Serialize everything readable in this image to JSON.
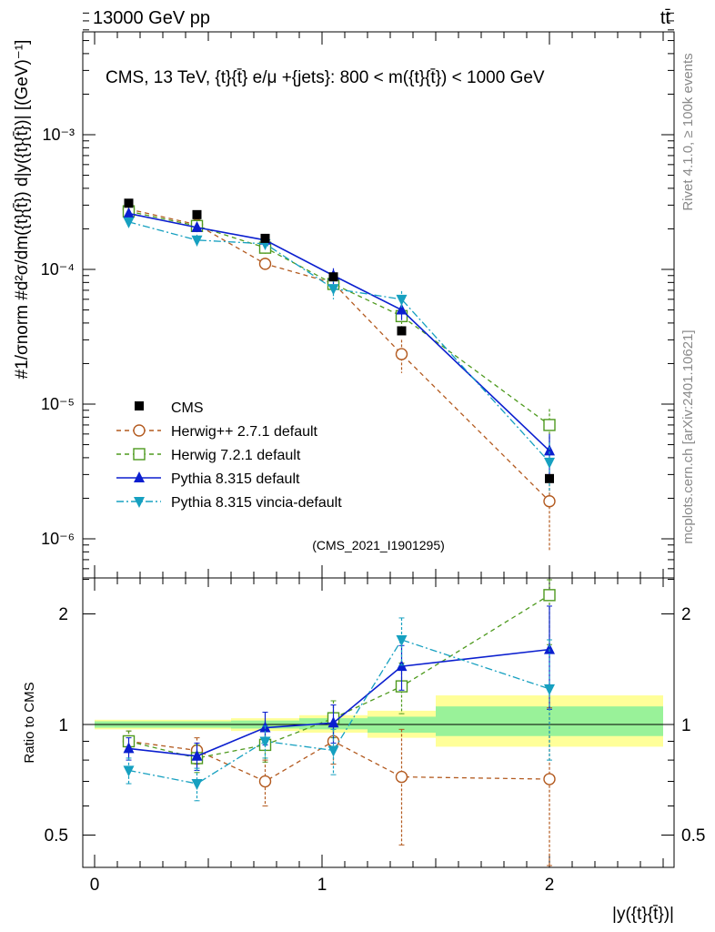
{
  "header": {
    "left": "13000 GeV pp",
    "right": "tt̄",
    "title": "CMS, 13 TeV, {t}{t̄} e/μ +{jets}: 800 < m({t}{t̄}) < 1000 GeV",
    "side_label": "Rivet 4.1.0, ≥ 100k events",
    "side_label2": "mcplots.cern.ch [arXiv:2401.10621]",
    "watermark": "(CMS_2021_I1901295)"
  },
  "chart_data": [
    {
      "type": "scatter",
      "title": "CMS, 13 TeV, {t}{t̄} e/μ +{jets}: 800 < m({t}{t̄}) < 1000 GeV",
      "ylabel": "#1/σnorm #d²σ/dm({t}{t̄}) d|y({t}{t̄})| [(GeV)⁻¹]",
      "yscale": "log",
      "ylim": [
        5e-07,
        0.008
      ],
      "xlim": [
        -0.1,
        2.55
      ],
      "y_tick_labels": [
        "10⁻³",
        "10⁻⁴",
        "10⁻⁵",
        "10⁻⁶"
      ],
      "data": {
        "name": "CMS",
        "x": [
          0.15,
          0.45,
          0.75,
          1.05,
          1.35,
          2.0
        ],
        "y": [
          0.00031,
          0.000255,
          0.00017,
          8.8e-05,
          3.5e-05,
          2.8e-06
        ],
        "color": "#000000"
      },
      "series": [
        {
          "name": "Herwig++ 2.7.1 default",
          "color": "#b35a1f",
          "marker": "circle-open",
          "dash": "dashed",
          "x": [
            0.15,
            0.45,
            0.75,
            1.05,
            1.35,
            2.0
          ],
          "y": [
            0.00028,
            0.000215,
            0.00011,
            7.9e-05,
            2.35e-05,
            1.9e-06
          ],
          "err": [
            2e-05,
            1.8e-05,
            1.2e-05,
            1e-05,
            6.5e-06,
            1.1e-06
          ]
        },
        {
          "name": "Herwig 7.2.1 default",
          "color": "#4e9a1e",
          "marker": "square-open",
          "dash": "dashed",
          "x": [
            0.15,
            0.45,
            0.75,
            1.05,
            1.35,
            2.0
          ],
          "y": [
            0.00027,
            0.00021,
            0.000145,
            7.8e-05,
            4.5e-05,
            7e-06
          ],
          "err": [
            2e-05,
            1.8e-05,
            1.5e-05,
            1.2e-05,
            7e-06,
            2.2e-06
          ]
        },
        {
          "name": "Pythia 8.315 default",
          "color": "#0b1fcf",
          "marker": "triangle-up",
          "dash": "solid",
          "x": [
            0.15,
            0.45,
            0.75,
            1.05,
            1.35,
            2.0
          ],
          "y": [
            0.00026,
            0.000205,
            0.000165,
            9e-05,
            5e-05,
            4.5e-06
          ],
          "err": [
            1.8e-05,
            1.6e-05,
            1.5e-05,
            1.2e-05,
            8e-06,
            1.5e-06
          ]
        },
        {
          "name": "Pythia 8.315 vincia-default",
          "color": "#16a0c0",
          "marker": "triangle-down",
          "dash": "dashdot",
          "x": [
            0.15,
            0.45,
            0.75,
            1.05,
            1.35,
            2.0
          ],
          "y": [
            0.000225,
            0.000165,
            0.000155,
            7.2e-05,
            6e-05,
            3.7e-06
          ],
          "err": [
            1.8e-05,
            1.6e-05,
            1.5e-05,
            1.2e-05,
            9e-06,
            1.5e-06
          ]
        }
      ],
      "legend_position": "bottom-left"
    },
    {
      "type": "scatter",
      "ylabel": "Ratio to CMS",
      "xlabel": "|y({t}{t̄})|",
      "ylim": [
        0.38,
        2.3
      ],
      "xlim": [
        -0.1,
        2.55
      ],
      "x_ticks": [
        0,
        1,
        2
      ],
      "x_tick_labels": [
        "0",
        "1",
        "2"
      ],
      "y_ticks": [
        0.5,
        1,
        2
      ],
      "y_tick_labels": [
        "0.5",
        "1",
        "2"
      ],
      "bands": [
        {
          "x0": 0.0,
          "x1": 0.6,
          "yellow": [
            0.97,
            1.03
          ],
          "green": [
            0.98,
            1.02
          ]
        },
        {
          "x0": 0.6,
          "x1": 0.9,
          "yellow": [
            0.96,
            1.04
          ],
          "green": [
            0.975,
            1.025
          ]
        },
        {
          "x0": 0.9,
          "x1": 1.2,
          "yellow": [
            0.95,
            1.06
          ],
          "green": [
            0.97,
            1.04
          ]
        },
        {
          "x0": 1.2,
          "x1": 1.5,
          "yellow": [
            0.92,
            1.09
          ],
          "green": [
            0.95,
            1.05
          ]
        },
        {
          "x0": 1.5,
          "x1": 2.5,
          "yellow": [
            0.87,
            1.2
          ],
          "green": [
            0.93,
            1.12
          ]
        }
      ],
      "series": [
        {
          "name": "Herwig++ 2.7.1 default",
          "color": "#b35a1f",
          "marker": "circle-open",
          "dash": "dashed",
          "x": [
            0.15,
            0.45,
            0.75,
            1.05,
            1.35,
            2.0
          ],
          "y": [
            0.9,
            0.85,
            0.7,
            0.9,
            0.72,
            0.71
          ],
          "err": [
            0.06,
            0.07,
            0.1,
            0.12,
            0.25,
            0.4
          ]
        },
        {
          "name": "Herwig 7.2.1 default",
          "color": "#4e9a1e",
          "marker": "square-open",
          "dash": "dashed",
          "x": [
            0.15,
            0.45,
            0.75,
            1.05,
            1.35,
            2.0
          ],
          "y": [
            0.9,
            0.81,
            0.88,
            1.04,
            1.27,
            2.25
          ],
          "err": [
            0.06,
            0.07,
            0.09,
            0.12,
            0.2,
            0.6
          ]
        },
        {
          "name": "Pythia 8.315 default",
          "color": "#0b1fcf",
          "marker": "triangle-up",
          "dash": "solid",
          "x": [
            0.15,
            0.45,
            0.75,
            1.05,
            1.35,
            2.0
          ],
          "y": [
            0.86,
            0.82,
            0.98,
            1.01,
            1.44,
            1.6
          ],
          "err": [
            0.06,
            0.07,
            0.1,
            0.12,
            0.2,
            0.5
          ]
        },
        {
          "name": "Pythia 8.315 vincia-default",
          "color": "#16a0c0",
          "marker": "triangle-down",
          "dash": "dashdot",
          "x": [
            0.15,
            0.45,
            0.75,
            1.05,
            1.35,
            2.0
          ],
          "y": [
            0.75,
            0.69,
            0.9,
            0.85,
            1.7,
            1.25
          ],
          "err": [
            0.06,
            0.07,
            0.09,
            0.12,
            0.25,
            0.45
          ]
        }
      ]
    }
  ]
}
